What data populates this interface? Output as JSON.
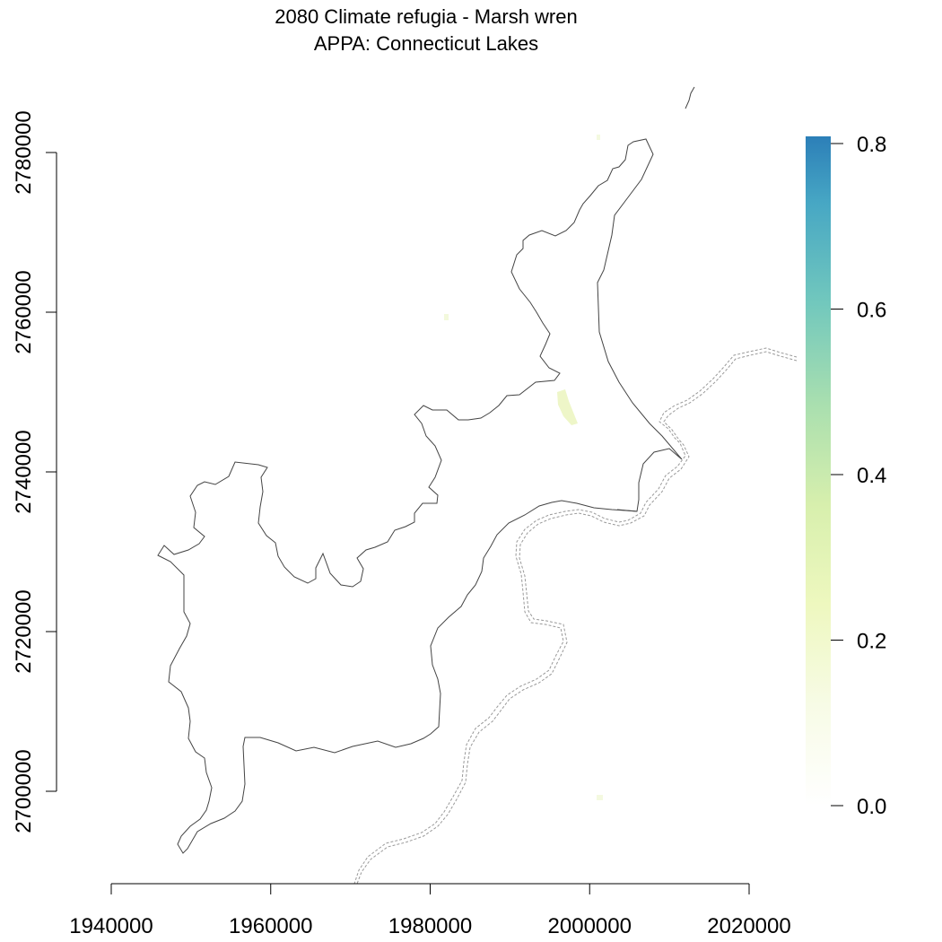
{
  "chart_data": {
    "type": "heatmap",
    "title": "2080 Climate refugia - Marsh wren",
    "subtitle": "APPA: Connecticut Lakes",
    "xlabel": "",
    "ylabel": "",
    "x_ticks": [
      1940000,
      1960000,
      1980000,
      2000000,
      2020000
    ],
    "y_ticks": [
      2700000,
      2720000,
      2740000,
      2760000,
      2780000
    ],
    "xlim": [
      1940000,
      2020000
    ],
    "ylim": [
      2700000,
      2780000
    ],
    "colorbar": {
      "ticks": [
        "0.0",
        "0.2",
        "0.4",
        "0.6",
        "0.8"
      ],
      "range": [
        0,
        0.8
      ],
      "colors": [
        "#ffffff",
        "#f2f9d0",
        "#e8f7ad",
        "#c2e8a8",
        "#7fcdbb",
        "#41a6c4",
        "#2c7fb8"
      ]
    },
    "values_note": "",
    "grid": false
  }
}
